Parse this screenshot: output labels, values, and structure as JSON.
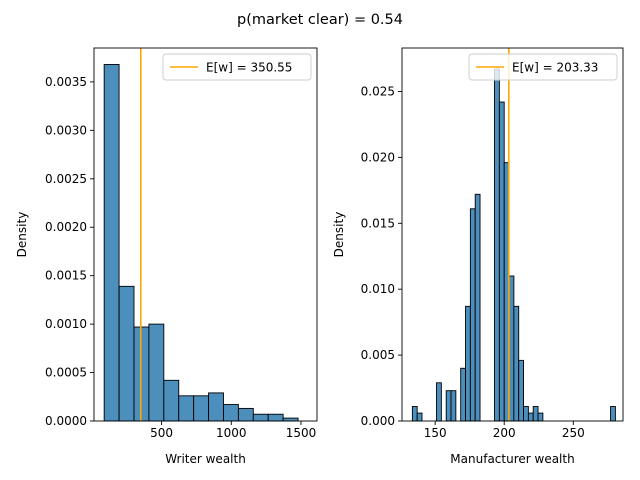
{
  "figure": {
    "suptitle": "p(market clear) =  0.54"
  },
  "chart_data": [
    {
      "type": "bar",
      "kind": "histogram",
      "xlabel": "Writer wealth",
      "ylabel": "Density",
      "xlim": [
        15,
        1615
      ],
      "ylim": [
        0,
        0.00385
      ],
      "xticks": [
        500,
        1000,
        1500
      ],
      "xtick_labels": [
        "500",
        "1000",
        "1500"
      ],
      "yticks": [
        0,
        0.0005,
        0.001,
        0.0015,
        0.002,
        0.0025,
        0.003,
        0.0035
      ],
      "ytick_labels": [
        "0.0000",
        "0.0005",
        "0.0010",
        "0.0015",
        "0.0020",
        "0.0025",
        "0.0030",
        "0.0035"
      ],
      "bin_edges": [
        88,
        195,
        302,
        409,
        516,
        623,
        730,
        837,
        944,
        1051,
        1158,
        1265,
        1372,
        1479,
        1586
      ],
      "values": [
        0.00368,
        0.00139,
        0.00097,
        0.001,
        0.00042,
        0.00026,
        0.00026,
        0.00029,
        0.00017,
        0.00013,
        7e-05,
        7e-05,
        3e-05,
        0.0
      ],
      "bar_color": "#4c8fbd",
      "edge_color": "#000000",
      "mean_line": {
        "x": 350.55,
        "color": "#ffa500"
      },
      "legend": {
        "label": "E[w] = 350.55",
        "position": "top-right"
      },
      "grid": false
    },
    {
      "type": "bar",
      "kind": "histogram",
      "xlabel": "Manufacturer wealth",
      "ylabel": "Density",
      "xlim": [
        126,
        286
      ],
      "ylim": [
        0,
        0.0283
      ],
      "xticks": [
        150,
        200,
        250
      ],
      "xtick_labels": [
        "150",
        "200",
        "250"
      ],
      "yticks": [
        0,
        0.005,
        0.01,
        0.015,
        0.02,
        0.025
      ],
      "ytick_labels": [
        "0.000",
        "0.005",
        "0.010",
        "0.015",
        "0.020",
        "0.025"
      ],
      "bin_edges": [
        133.5,
        137.0,
        140.5,
        144.0,
        147.5,
        151.0,
        154.5,
        158.0,
        161.5,
        165.0,
        168.5,
        172.0,
        175.5,
        179.0,
        182.5,
        186.0,
        189.5,
        193.0,
        196.5,
        200.0,
        203.5,
        207.0,
        210.5,
        214.0,
        217.5,
        221.0,
        224.5,
        228.0,
        231.5,
        235.0,
        238.5,
        242.0,
        245.5,
        249.0,
        252.5,
        256.0,
        259.5,
        263.0,
        266.5,
        270.0,
        273.5,
        277.0,
        280.5
      ],
      "values": [
        0.0011,
        0.0006,
        0.0,
        0.0,
        0.0,
        0.0029,
        0.0,
        0.0023,
        0.0023,
        0.0,
        0.004,
        0.0087,
        0.0161,
        0.0172,
        0.0,
        0.0,
        0.0,
        0.0267,
        0.0242,
        0.0196,
        0.011,
        0.0087,
        0.0046,
        0.0011,
        0.0006,
        0.0011,
        0.0006,
        0.0,
        0.0,
        0.0,
        0.0,
        0.0,
        0.0,
        0.0,
        0.0,
        0.0,
        0.0,
        0.0,
        0.0,
        0.0,
        0.0,
        0.0011
      ],
      "bar_color": "#4c8fbd",
      "edge_color": "#000000",
      "mean_line": {
        "x": 203.33,
        "color": "#ffa500"
      },
      "legend": {
        "label": "E[w] = 203.33",
        "position": "top-right"
      },
      "grid": false
    }
  ]
}
